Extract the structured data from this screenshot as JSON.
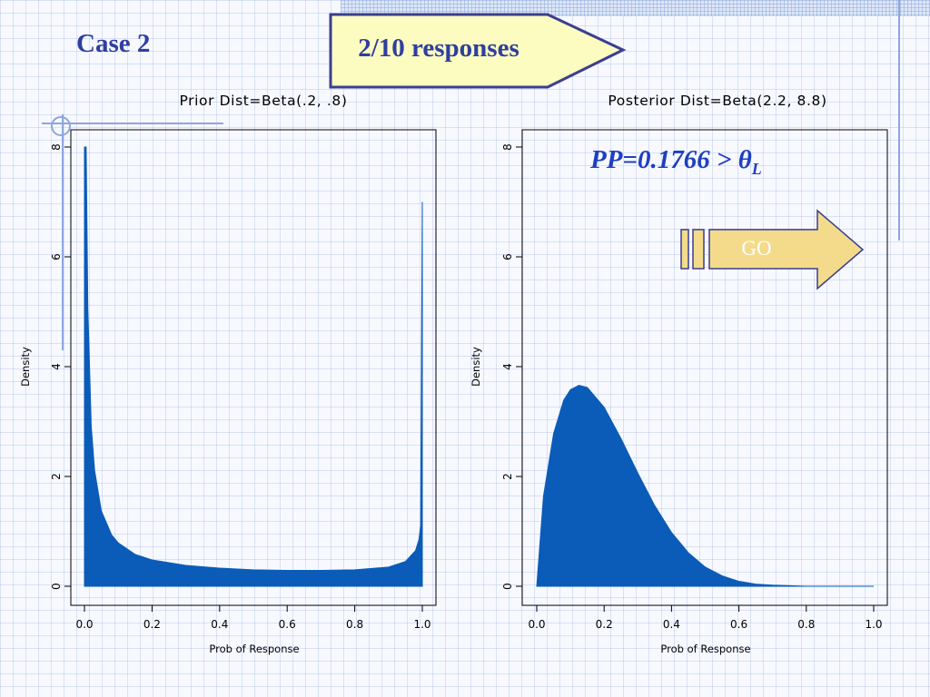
{
  "slide": {
    "title": "Case 2",
    "banner_text": "2/10 responses",
    "pp_text": "PP=0.1766 > ",
    "pp_symbol": "θ",
    "pp_subscript": "L",
    "go_label": "GO",
    "colors": {
      "title": "#2f3f9e",
      "banner_fill": "#fdfcc0",
      "banner_stroke": "#3a3f8e",
      "pp_text": "#1f3fc0",
      "go_fill": "#f3db8b",
      "go_stroke": "#3a3f8e",
      "density_fill": "#0a5cb8"
    }
  },
  "chart_data": [
    {
      "type": "area",
      "title": "Prior Dist=Beta(.2, .8)",
      "xlabel": "Prob of Response",
      "ylabel": "Density",
      "xlim": [
        0,
        1
      ],
      "ylim": [
        0,
        8
      ],
      "x_ticks": [
        "0.0",
        "0.2",
        "0.4",
        "0.6",
        "0.8",
        "1.0"
      ],
      "y_ticks": [
        "0",
        "2",
        "4",
        "6",
        "8"
      ],
      "y_tick_values": [
        0,
        2,
        4,
        6,
        8
      ],
      "distribution": {
        "family": "beta",
        "alpha": 0.2,
        "beta": 0.8
      },
      "x": [
        0.0,
        0.005,
        0.01,
        0.02,
        0.03,
        0.05,
        0.08,
        0.1,
        0.15,
        0.2,
        0.3,
        0.4,
        0.5,
        0.6,
        0.7,
        0.8,
        0.9,
        0.95,
        0.98,
        0.99,
        0.995,
        1.0
      ],
      "y": [
        8.0,
        8.0,
        5.07,
        2.92,
        2.11,
        1.37,
        0.94,
        0.79,
        0.58,
        0.48,
        0.38,
        0.33,
        0.3,
        0.29,
        0.29,
        0.3,
        0.35,
        0.45,
        0.65,
        0.85,
        1.1,
        7.0
      ],
      "grid": false
    },
    {
      "type": "area",
      "title": "Posterior Dist=Beta(2.2, 8.8)",
      "xlabel": "Prob of Response",
      "ylabel": "Density",
      "xlim": [
        0,
        1
      ],
      "ylim": [
        0,
        8
      ],
      "x_ticks": [
        "0.0",
        "0.2",
        "0.4",
        "0.6",
        "0.8",
        "1.0"
      ],
      "y_ticks": [
        "0",
        "2",
        "4",
        "6",
        "8"
      ],
      "y_tick_values": [
        0,
        2,
        4,
        6,
        8
      ],
      "distribution": {
        "family": "beta",
        "alpha": 2.2,
        "beta": 8.8
      },
      "x": [
        0.0,
        0.02,
        0.05,
        0.08,
        0.1,
        0.125,
        0.15,
        0.2,
        0.25,
        0.3,
        0.35,
        0.4,
        0.45,
        0.5,
        0.55,
        0.6,
        0.65,
        0.7,
        0.8,
        0.9,
        1.0
      ],
      "y": [
        0.0,
        1.64,
        2.78,
        3.39,
        3.58,
        3.66,
        3.62,
        3.26,
        2.69,
        2.06,
        1.47,
        0.98,
        0.61,
        0.35,
        0.19,
        0.09,
        0.04,
        0.02,
        0.0,
        0.0,
        0.0
      ],
      "grid": false
    }
  ]
}
